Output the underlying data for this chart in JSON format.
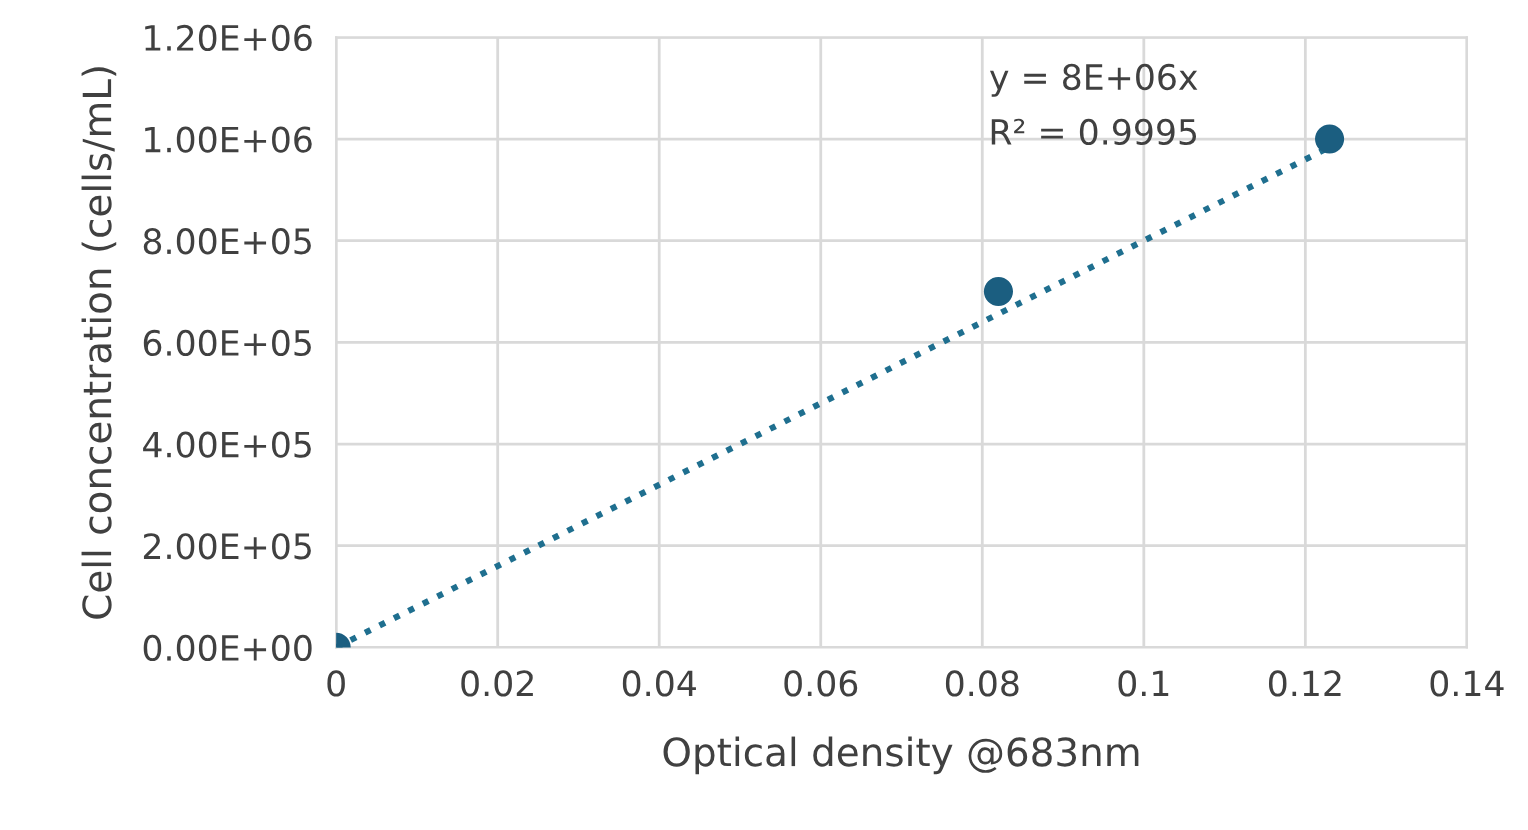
{
  "chart_data": {
    "type": "scatter",
    "xlabel": "Optical density @683nm",
    "ylabel": "Cell concentration (cells/mL)",
    "series": [
      {
        "color": "#1b5e80",
        "marker": "circle",
        "x": [
          0,
          0.082,
          0.123
        ],
        "values": [
          0,
          700000,
          1000000
        ]
      },
      {
        "type": "line",
        "color": "#1f6f8f",
        "line_style": "dotted",
        "marker": "none",
        "x": [
          0,
          0.123
        ],
        "values": [
          0,
          984000
        ]
      }
    ],
    "annotations": [
      "y = 8E+06x",
      "R² = 0.9995"
    ],
    "xlim": [
      0,
      0.14
    ],
    "xticks": [
      0,
      0.02,
      0.04,
      0.06,
      0.08,
      0.1,
      0.12,
      0.14
    ],
    "ylim": [
      0,
      1200000
    ],
    "yticks": [
      {
        "value": 0,
        "label": "0.00E+00"
      },
      {
        "value": 200000,
        "label": "2.00E+05"
      },
      {
        "value": 400000,
        "label": "4.00E+05"
      },
      {
        "value": 600000,
        "label": "6.00E+05"
      },
      {
        "value": 800000,
        "label": "8.00E+05"
      },
      {
        "value": 1000000,
        "label": "1.00E+06"
      },
      {
        "value": 1200000,
        "label": "1.20E+06"
      }
    ],
    "grid": true
  }
}
